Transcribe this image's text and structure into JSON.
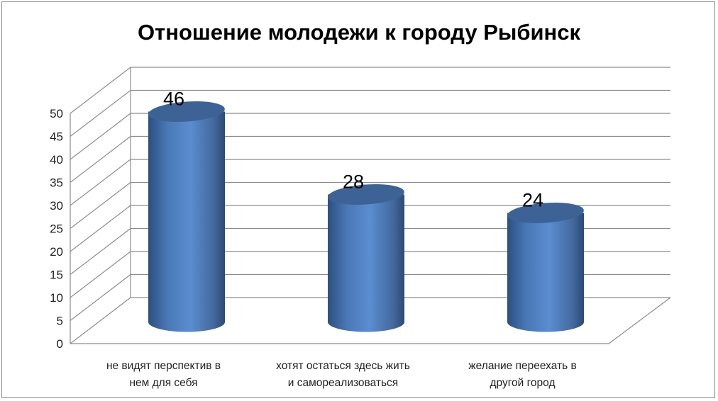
{
  "chart_data": {
    "type": "bar",
    "style": "3d-cylinder",
    "title": "Отношение  молодежи к городу Рыбинск",
    "categories": [
      [
        "не видят перспектив в",
        "нем для себя"
      ],
      [
        "хотят остаться здесь жить",
        "и самореализоваться"
      ],
      [
        "желание переехать в",
        "другой город"
      ]
    ],
    "values": [
      46,
      28,
      24
    ],
    "data_labels": [
      "46",
      "28",
      "24"
    ],
    "ylim": [
      0,
      50
    ],
    "yticks": [
      "0",
      "5",
      "10",
      "15",
      "20",
      "25",
      "30",
      "35",
      "40",
      "45",
      "50"
    ],
    "grid": true,
    "legend": "none",
    "colors": {
      "bar": "#4f81bd",
      "bar_dark": "#2f5487",
      "bar_top": "#3d6396",
      "grid": "#8c8c8c"
    }
  }
}
